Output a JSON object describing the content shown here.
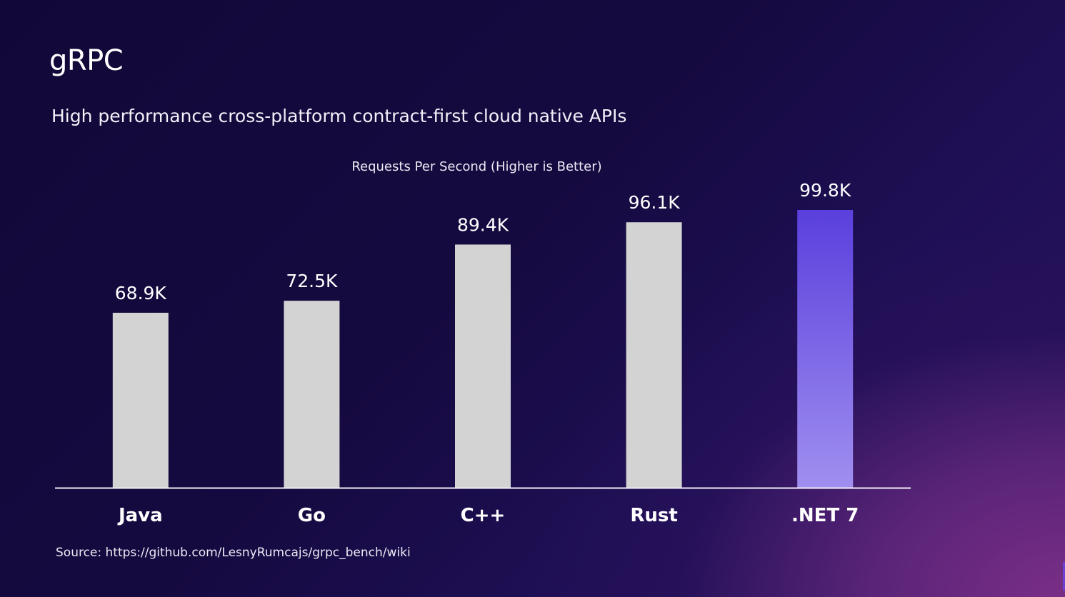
{
  "slide": {
    "title": "gRPC",
    "subtitle": "High performance cross-platform contract-first cloud native APIs",
    "source": "Source: https://github.com/LesnyRumcajs/grpc_bench/wiki"
  },
  "colors": {
    "bar_default": "#d3d3d3",
    "bar_highlight_top": "#5a3fdc",
    "bar_highlight_bottom": "#a08ff0",
    "axis_line": "#f0eef6",
    "label_text": "#ffffff"
  },
  "chart_data": {
    "type": "bar",
    "title": "Requests Per Second (Higher is Better)",
    "xlabel": "",
    "ylabel": "",
    "categories": [
      "Java",
      "Go",
      "C++",
      "Rust",
      ".NET 7"
    ],
    "values": [
      68.9,
      72.5,
      89.4,
      96.1,
      99.8
    ],
    "data_labels": [
      "68.9K",
      "72.5K",
      "89.4K",
      "96.1K",
      "99.8K"
    ],
    "units": "thousand requests per second",
    "highlight_index": 4,
    "ylim": [
      16.3,
      99.8
    ],
    "grid": false,
    "y_axis_visible": false,
    "legend": "none"
  }
}
